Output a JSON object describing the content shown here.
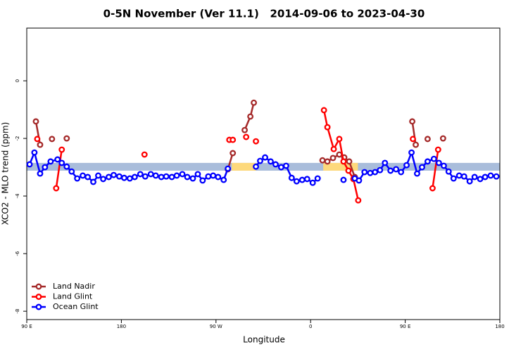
{
  "chart_data": {
    "type": "line",
    "title": "0-5N November (Ver 11.1)   2014-09-06 to 2023-04-30",
    "x_label": "Longitude",
    "y_label": "XCO2 - MLO trend (ppm)",
    "xlim": [
      90,
      540
    ],
    "ylim": [
      -8.29,
      1.83
    ],
    "xticks": [
      {
        "value": 90,
        "label": "90 E"
      },
      180,
      {
        "value": 270,
        "label": "90 W"
      },
      {
        "value": 360,
        "label": "0"
      },
      {
        "value": 450,
        "label": "90 E"
      },
      {
        "value": 540,
        "label": "180"
      }
    ],
    "yticks": [
      -8,
      -6,
      -4,
      -2,
      0
    ],
    "legend": "bottom-left",
    "band": {
      "ylim": [
        -3.12,
        -2.85
      ],
      "color": "#a9bddb",
      "highlight_color": "#fdd97c",
      "highlights": [
        [
          285,
          308
        ],
        [
          372,
          405
        ]
      ]
    },
    "series": [
      {
        "name": "Land Nadir",
        "color": "#a52a2a",
        "x": [
          98.7,
          102.7,
          null,
          114,
          null,
          128,
          null,
          281.3,
          286,
          null,
          297.3,
          302.7,
          306,
          null,
          371.3,
          376,
          381.3,
          387.3,
          392,
          396.7,
          402,
          null,
          456.7,
          460,
          null,
          471.3,
          null,
          486
        ],
        "values": [
          -1.41,
          -2.22,
          null,
          -2.02,
          null,
          -2.0,
          null,
          -3.07,
          -2.51,
          null,
          -1.71,
          -1.24,
          -0.76,
          null,
          -2.76,
          -2.8,
          -2.68,
          -2.56,
          -2.66,
          -2.8,
          -3.34,
          null,
          -1.41,
          -2.22,
          null,
          -2.02,
          null,
          -2.0
        ]
      },
      {
        "name": "Land Glint",
        "color": "#ff0000",
        "x": [
          100,
          null,
          118,
          123.3,
          null,
          202,
          null,
          282.7,
          286,
          null,
          298.7,
          null,
          308,
          null,
          372.7,
          376,
          382,
          387.3,
          391.3,
          396,
          400.7,
          405.3,
          null,
          457.3,
          null,
          476,
          481.3
        ],
        "values": [
          -2.02,
          null,
          -3.73,
          -2.39,
          null,
          -2.56,
          null,
          -2.05,
          -2.05,
          null,
          -1.95,
          null,
          -2.1,
          null,
          -1.02,
          -1.61,
          -2.37,
          -2.02,
          -2.8,
          -3.12,
          -3.41,
          -4.15,
          null,
          -2.02,
          null,
          -3.73,
          -2.39
        ]
      },
      {
        "name": "Ocean Glint",
        "color": "#0000ff",
        "x": [
          92.7,
          97.3,
          102.7,
          107.3,
          112.7,
          119.3,
          123.3,
          128,
          132.7,
          138,
          143.3,
          148,
          153.3,
          158,
          162.7,
          168,
          172.7,
          178,
          182.7,
          188,
          192.7,
          198,
          202.7,
          208,
          212.7,
          218,
          222.7,
          228,
          232.7,
          238,
          242.7,
          248,
          252.7,
          257.3,
          262.7,
          267.3,
          272,
          277.3,
          281.3,
          null,
          308,
          312,
          316.7,
          322,
          326.7,
          332,
          336.7,
          342,
          346.7,
          352,
          356.7,
          362,
          366.7,
          null,
          391.3,
          null,
          402,
          406,
          411.3,
          416.7,
          421.3,
          426,
          430.7,
          436,
          441.3,
          446,
          451.3,
          456,
          461.3,
          466,
          471.3,
          477.3,
          482,
          486.7,
          491.3,
          496,
          501.3,
          506,
          511.3,
          516,
          521.3,
          526,
          531.3,
          536.7
        ],
        "values": [
          -2.9,
          -2.49,
          -3.22,
          -3.0,
          -2.8,
          -2.73,
          -2.85,
          -2.98,
          -3.15,
          -3.39,
          -3.29,
          -3.34,
          -3.51,
          -3.29,
          -3.41,
          -3.34,
          -3.27,
          -3.32,
          -3.37,
          -3.39,
          -3.34,
          -3.24,
          -3.32,
          -3.24,
          -3.29,
          -3.34,
          -3.32,
          -3.34,
          -3.29,
          -3.24,
          -3.34,
          -3.39,
          -3.24,
          -3.46,
          -3.32,
          -3.29,
          -3.34,
          -3.44,
          -3.05,
          null,
          -2.98,
          -2.78,
          -2.66,
          -2.8,
          -2.9,
          -3.0,
          -2.95,
          -3.37,
          -3.49,
          -3.44,
          -3.41,
          -3.54,
          -3.39,
          null,
          -3.44,
          null,
          -3.39,
          -3.46,
          -3.17,
          -3.2,
          -3.17,
          -3.1,
          -2.85,
          -3.12,
          -3.07,
          -3.17,
          -2.93,
          -2.49,
          -3.22,
          -3.0,
          -2.8,
          -2.71,
          -2.85,
          -2.95,
          -3.15,
          -3.39,
          -3.29,
          -3.32,
          -3.49,
          -3.34,
          -3.41,
          -3.34,
          -3.29,
          -3.32
        ]
      }
    ]
  }
}
